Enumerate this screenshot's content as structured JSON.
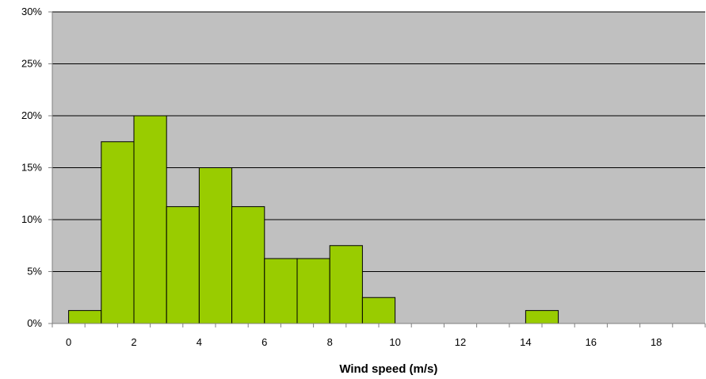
{
  "chart_data": {
    "type": "bar",
    "title": "",
    "xlabel": "Wind speed (m/s)",
    "ylabel": "",
    "x_bin_centers": [
      1,
      2,
      3,
      4,
      5,
      6,
      7,
      8,
      9,
      10,
      11,
      12,
      13,
      14,
      15,
      16,
      17,
      18,
      19
    ],
    "values": [
      1.25,
      17.5,
      20,
      11.25,
      15,
      11.25,
      6.25,
      6.25,
      7.5,
      2.5,
      0,
      0,
      0,
      0,
      1.25,
      0,
      0,
      0,
      0
    ],
    "value_unit": "%",
    "xlim": [
      0,
      20
    ],
    "x_tick_values": [
      0,
      2,
      4,
      6,
      8,
      10,
      12,
      14,
      16,
      18
    ],
    "x_tick_labels": [
      "0",
      "2",
      "4",
      "6",
      "8",
      "10",
      "12",
      "14",
      "16",
      "18"
    ],
    "ylim": [
      0,
      30
    ],
    "y_tick_values": [
      0,
      5,
      10,
      15,
      20,
      25,
      30
    ],
    "y_tick_labels": [
      "0%",
      "5%",
      "10%",
      "15%",
      "20%",
      "25%",
      "30%"
    ],
    "grid": "horizontal",
    "legend": "none",
    "colors": {
      "plot_background": "#c0c0c0",
      "bar_fill": "#99cc00",
      "bar_stroke": "#000000",
      "grid": "#000000",
      "axis": "#808080"
    }
  }
}
